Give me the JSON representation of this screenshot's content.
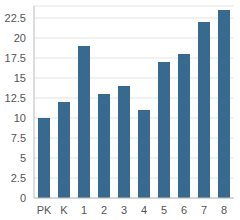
{
  "chart_data": {
    "type": "bar",
    "categories": [
      "PK",
      "K",
      "1",
      "2",
      "3",
      "4",
      "5",
      "6",
      "7",
      "8"
    ],
    "values": [
      10,
      12,
      19,
      13,
      14,
      11,
      17,
      18,
      22,
      23.5
    ],
    "color": "#386a8f",
    "ylim": [
      0,
      24
    ],
    "yticks": [
      0,
      2.5,
      5,
      7.5,
      10,
      12.5,
      15,
      17.5,
      20,
      22.5
    ],
    "grid": true
  }
}
